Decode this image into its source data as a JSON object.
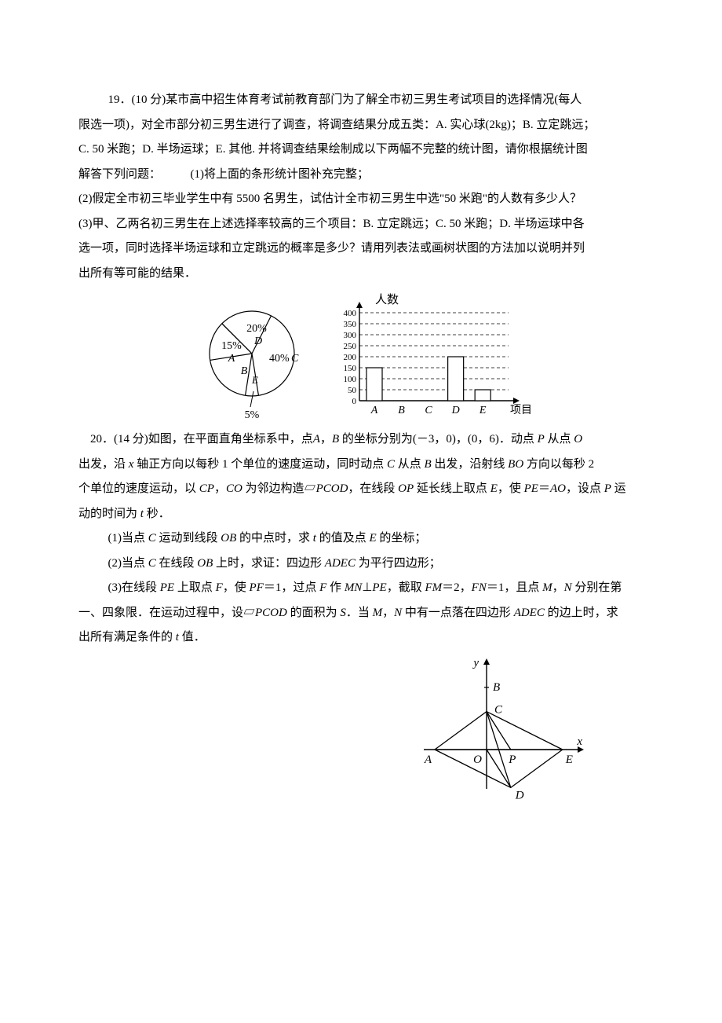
{
  "problem19": {
    "line1": "19．(10 分)某市高中招生体育考试前教育部门为了解全市初三男生考试项目的选择情况(每人",
    "line2": "限选一项)，对全市部分初三男生进行了调查，将调查结果分成五类：A. 实心球(2kg)；B. 立定跳远；",
    "line3": "C. 50 米跑；D. 半场运球；E. 其他. 并将调查结果绘制成以下两幅不完整的统计图，请你根据统计图",
    "line4_a": "解答下列问题：",
    "line4_b": "(1)将上面的条形统计图补充完整；",
    "line5": "(2)假定全市初三毕业学生中有 5500 名男生，试估计全市初三男生中选\"50 米跑\"的人数有多少人？",
    "line6": "(3)甲、乙两名初三男生在上述选择率较高的三个项目：B. 立定跳远；C. 50 米跑；D. 半场运球中各",
    "line7": "选一项，同时选择半场运球和立定跳远的概率是多少？请用列表法或画树状图的方法加以说明并列",
    "line8": "出所有等可能的结果．"
  },
  "pie": {
    "sectors": [
      {
        "label": "A",
        "pct_label": "15%"
      },
      {
        "label": "B",
        "pct_label": ""
      },
      {
        "label": "C",
        "pct_label": "40%"
      },
      {
        "label": "D",
        "pct_label": "20%"
      },
      {
        "label": "E",
        "pct_label": "5%"
      }
    ],
    "bottom_label": "5%"
  },
  "bar": {
    "y_title": "人数",
    "x_title": "项目",
    "y_ticks": [
      "0",
      "50",
      "100",
      "150",
      "200",
      "250",
      "300",
      "350",
      "400"
    ],
    "categories": [
      "A",
      "B",
      "C",
      "D",
      "E"
    ],
    "values": [
      150,
      0,
      0,
      200,
      50
    ],
    "y_max": 400,
    "axis_color": "#000000",
    "grid_color": "#000000",
    "bar_border": "#000000",
    "bar_fill": "#ffffff"
  },
  "problem20": {
    "line1_a": "　20．(14 分)如图，在平面直角坐标系中，点",
    "line1_A": "A",
    "line1_b": "，",
    "line1_B": "B",
    "line1_c": " 的坐标分别为(－3，0)，(0，6)．动点 ",
    "line1_P": "P",
    "line1_d": " 从点 ",
    "line1_O": "O",
    "line2_a": "出发，沿 ",
    "line2_x": "x",
    "line2_b": " 轴正方向以每秒 1 个单位的速度运动，同时动点 ",
    "line2_C": "C",
    "line2_c": " 从点 ",
    "line2_B": "B",
    "line2_d": " 出发，沿射线 ",
    "line2_BO": "BO",
    "line2_e": " 方向以每秒 2",
    "line3_a": "个单位的速度运动，以 ",
    "line3_CP": "CP",
    "line3_b": "，",
    "line3_CO": "CO",
    "line3_c": " 为邻边构造▱",
    "line3_PCOD": "PCOD",
    "line3_d": "，在线段 ",
    "line3_OP": "OP",
    "line3_e": " 延长线上取点 ",
    "line3_E": "E",
    "line3_f": "，使 ",
    "line3_PE": "PE",
    "line3_g": "＝",
    "line3_AO": "AO",
    "line3_h": "，设点 ",
    "line3_P": "P",
    "line3_i": " 运",
    "line4_a": "动的时间为 ",
    "line4_t": "t",
    "line4_b": " 秒．",
    "sub1_a": "(1)当点 ",
    "sub1_C": "C",
    "sub1_b": " 运动到线段 ",
    "sub1_OB": "OB",
    "sub1_c": " 的中点时，求 ",
    "sub1_t": "t",
    "sub1_d": " 的值及点 ",
    "sub1_E": "E",
    "sub1_e": " 的坐标；",
    "sub2_a": "(2)当点 ",
    "sub2_C": "C",
    "sub2_b": " 在线段 ",
    "sub2_OB": "OB",
    "sub2_c": " 上时，求证：四边形 ",
    "sub2_ADEC": "ADEC",
    "sub2_d": " 为平行四边形；",
    "sub3l1_a": "(3)在线段 ",
    "sub3l1_PE": "PE",
    "sub3l1_b": " 上取点 ",
    "sub3l1_F": "F",
    "sub3l1_c": "，使 ",
    "sub3l1_PF": "PF",
    "sub3l1_d": "＝1，过点 ",
    "sub3l1_F2": "F",
    "sub3l1_e": " 作 ",
    "sub3l1_MN": "MN",
    "sub3l1_f": "⊥",
    "sub3l1_PE2": "PE",
    "sub3l1_g": "，截取 ",
    "sub3l1_FM": "FM",
    "sub3l1_h": "＝2，",
    "sub3l1_FN": "FN",
    "sub3l1_i": "＝1，且点 ",
    "sub3l1_M": "M",
    "sub3l1_j": "，",
    "sub3l1_N": "N",
    "sub3l1_k": " 分别在第",
    "sub3l2_a": "一、四象限．在运动过程中，设▱",
    "sub3l2_PCOD": "PCOD",
    "sub3l2_b": " 的面积为 ",
    "sub3l2_S": "S",
    "sub3l2_c": "．当 ",
    "sub3l2_M": "M",
    "sub3l2_d": "，",
    "sub3l2_N": "N",
    "sub3l2_e": " 中有一点落在四边形 ",
    "sub3l2_ADEC": "ADEC",
    "sub3l2_f": " 的边上时，求",
    "sub3l3": "出所有满足条件的 ",
    "sub3l3_t": "t",
    "sub3l3_b": " 值．"
  },
  "fig20": {
    "labels": {
      "A": "A",
      "O": "O",
      "P": "P",
      "E": "E",
      "B": "B",
      "C": "C",
      "D": "D",
      "x": "x",
      "y": "y"
    },
    "axis_color": "#000000",
    "line_color": "#000000"
  }
}
